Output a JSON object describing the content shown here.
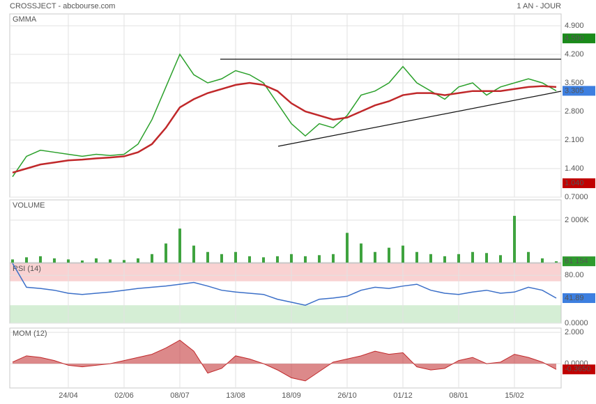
{
  "header": {
    "title": "CROSSJECT - abcbourse.com",
    "period": "1 AN - JOUR"
  },
  "chart_data": [
    {
      "type": "line",
      "label": "GMMA",
      "label_color": "#1a8a1a",
      "categories": [
        null,
        null,
        null,
        null,
        "24/04",
        null,
        null,
        null,
        "02/06",
        null,
        null,
        null,
        "08/07",
        null,
        null,
        null,
        "13/08",
        null,
        null,
        null,
        "18/09",
        null,
        null,
        null,
        "26/10",
        null,
        null,
        null,
        "01/12",
        null,
        null,
        null,
        "08/01",
        null,
        null,
        null,
        "15/02",
        null,
        null,
        null
      ],
      "series": [
        {
          "color": "#2aa02a",
          "values": [
            1.2,
            1.7,
            1.85,
            1.8,
            1.75,
            1.7,
            1.75,
            1.72,
            1.75,
            2.0,
            2.6,
            3.4,
            4.2,
            3.7,
            3.5,
            3.6,
            3.8,
            3.7,
            3.5,
            3.0,
            2.5,
            2.2,
            2.5,
            2.4,
            2.7,
            3.2,
            3.3,
            3.5,
            3.9,
            3.5,
            3.3,
            3.1,
            3.4,
            3.5,
            3.2,
            3.4,
            3.5,
            3.6,
            3.5,
            3.305
          ]
        },
        {
          "color": "#c0282a",
          "values": [
            1.3,
            1.4,
            1.5,
            1.55,
            1.6,
            1.62,
            1.65,
            1.67,
            1.7,
            1.8,
            2.0,
            2.4,
            2.9,
            3.1,
            3.25,
            3.35,
            3.45,
            3.5,
            3.45,
            3.3,
            3.0,
            2.8,
            2.7,
            2.6,
            2.65,
            2.8,
            2.95,
            3.05,
            3.2,
            3.25,
            3.25,
            3.2,
            3.25,
            3.3,
            3.3,
            3.3,
            3.35,
            3.4,
            3.42,
            3.4
          ]
        }
      ],
      "last_color": "#3d7fe0",
      "markers": [
        {
          "value": 4.59,
          "label": "4.590",
          "color": "#1a8a1a"
        },
        {
          "value": 1.04,
          "label": "1.040",
          "color": "#c00000"
        }
      ],
      "ylim": [
        0.7,
        5.2
      ],
      "yticks": [
        {
          "value": 0.7,
          "label": "0.7000"
        },
        {
          "value": 1.4,
          "label": "1.400"
        },
        {
          "value": 2.1,
          "label": "2.100"
        },
        {
          "value": 2.8,
          "label": "2.800"
        },
        {
          "value": 3.5,
          "label": "3.500"
        },
        {
          "value": 4.2,
          "label": "4.200"
        },
        {
          "value": 4.9,
          "label": "4.900"
        }
      ]
    },
    {
      "type": "bar",
      "label": "VOLUME",
      "label_color": "#1a8a1a",
      "color": "#3fa33f",
      "values": [
        150000,
        250000,
        300000,
        200000,
        150000,
        100000,
        200000,
        150000,
        120000,
        200000,
        400000,
        900000,
        1600000,
        800000,
        500000,
        400000,
        500000,
        300000,
        250000,
        300000,
        400000,
        300000,
        350000,
        400000,
        1400000,
        900000,
        500000,
        700000,
        800000,
        500000,
        400000,
        300000,
        400000,
        500000,
        450000,
        350000,
        2200000,
        500000,
        200000,
        61154
      ],
      "value_labels": [
        null,
        null,
        null,
        null,
        null,
        null,
        null,
        null,
        null,
        null,
        null,
        null,
        null,
        null,
        null,
        null,
        null,
        null,
        null,
        null,
        null,
        null,
        null,
        null,
        null,
        null,
        null,
        null,
        null,
        null,
        null,
        null,
        null,
        null,
        null,
        null,
        null,
        null,
        null,
        "61 154"
      ],
      "last_color": "#2e9a2e",
      "ylim": [
        0,
        2950000
      ],
      "yticks": [
        {
          "value": 2000000,
          "label": "2 000K"
        }
      ]
    },
    {
      "type": "line",
      "label": "RSI (14)",
      "label_color": "#3060c0",
      "series": [
        {
          "color": "#3b6fc8",
          "values": [
            100,
            60,
            58,
            55,
            50,
            48,
            50,
            52,
            55,
            58,
            60,
            62,
            65,
            68,
            62,
            55,
            52,
            50,
            48,
            40,
            35,
            30,
            40,
            42,
            45,
            55,
            60,
            58,
            62,
            65,
            55,
            50,
            48,
            52,
            55,
            50,
            52,
            60,
            55,
            41.89
          ]
        }
      ],
      "bands": [
        {
          "from": 70,
          "to": 100,
          "color": "#f9d2d2"
        },
        {
          "from": 0,
          "to": 30,
          "color": "#d5eed5"
        }
      ],
      "last_color": "#3d7fe0",
      "ylim": [
        0,
        100
      ],
      "yticks": [
        {
          "value": 0,
          "label": "0.0000"
        },
        {
          "value": 80,
          "label": "80.00"
        }
      ]
    },
    {
      "type": "area",
      "label": "MOM (12)",
      "label_color": "#c00000",
      "color": "#c0282a",
      "values": [
        0.1,
        0.5,
        0.4,
        0.2,
        -0.1,
        -0.2,
        -0.1,
        0,
        0.2,
        0.4,
        0.6,
        1.0,
        1.5,
        0.8,
        -0.6,
        -0.3,
        0.5,
        0.3,
        0,
        -0.4,
        -0.9,
        -1.1,
        -0.5,
        0.1,
        0.3,
        0.5,
        0.8,
        0.6,
        0.7,
        -0.2,
        -0.4,
        -0.3,
        0.2,
        0.4,
        0,
        0.1,
        0.6,
        0.4,
        0.1,
        -0.365
      ],
      "value_labels": [
        null,
        null,
        null,
        null,
        null,
        null,
        null,
        null,
        null,
        null,
        null,
        null,
        null,
        null,
        null,
        null,
        null,
        null,
        null,
        null,
        null,
        null,
        null,
        null,
        null,
        null,
        null,
        null,
        null,
        null,
        null,
        null,
        null,
        null,
        null,
        null,
        null,
        null,
        null,
        "-0.3650"
      ],
      "last_color": "#c00000",
      "ylim": [
        -1.55,
        2.27
      ],
      "yticks": [
        {
          "value": 0,
          "label": "0.0000"
        },
        {
          "value": 2,
          "label": "2.000"
        }
      ]
    }
  ]
}
